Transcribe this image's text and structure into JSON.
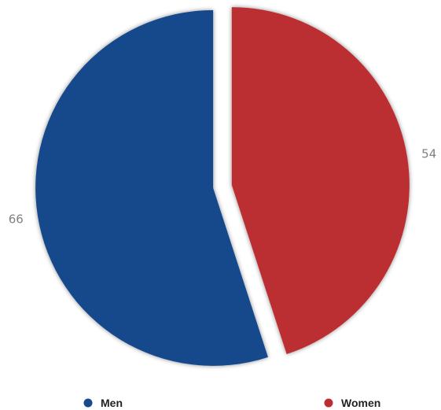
{
  "chart_data": {
    "type": "pie",
    "title": "",
    "exploded": true,
    "shadow": true,
    "legend_position": "bottom",
    "series": [
      {
        "name": "Men",
        "value": 66,
        "color": "#174a8c"
      },
      {
        "name": "Women",
        "value": 54,
        "color": "#bb2d32"
      }
    ],
    "data_labels": [
      "66",
      "54"
    ]
  }
}
